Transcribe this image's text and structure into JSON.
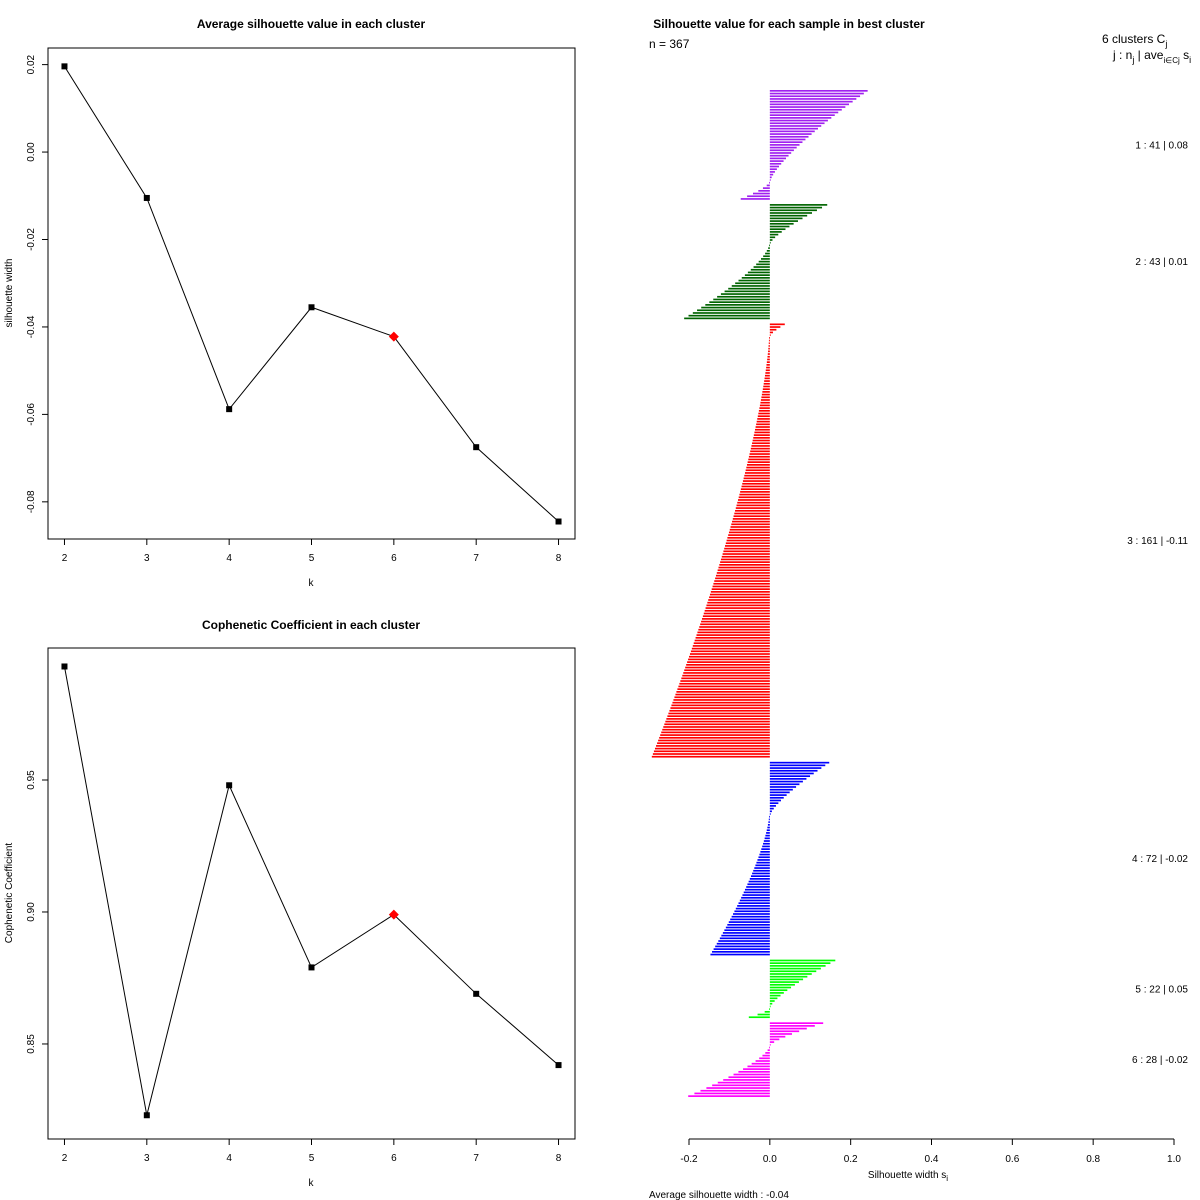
{
  "chart_data": [
    {
      "type": "line",
      "title": "Average silhouette value in each cluster",
      "xlabel": "k",
      "ylabel": "silhouette width",
      "x": [
        2,
        3,
        4,
        5,
        6,
        7,
        8
      ],
      "y": [
        0.0196,
        -0.0105,
        -0.0588,
        -0.0355,
        -0.0422,
        -0.0675,
        -0.0845
      ],
      "highlight_index": 4,
      "highlight_color": "#ff0000",
      "xlim": [
        1.8,
        8.2
      ],
      "ylim": [
        -0.0885,
        0.0238
      ],
      "xticks": [
        "2",
        "3",
        "4",
        "5",
        "6",
        "7",
        "8"
      ],
      "yticks": [
        {
          "v": 0.02,
          "label": "0.02"
        },
        {
          "v": 0.0,
          "label": "0.00"
        },
        {
          "v": -0.02,
          "label": "-0.02"
        },
        {
          "v": -0.04,
          "label": "-0.04"
        },
        {
          "v": -0.06,
          "label": "-0.06"
        },
        {
          "v": -0.08,
          "label": "-0.08"
        }
      ]
    },
    {
      "type": "line",
      "title": "Cophenetic Coefficient in each cluster",
      "xlabel": "k",
      "ylabel": "Cophenetic Coefficient",
      "x": [
        2,
        3,
        4,
        5,
        6,
        7,
        8
      ],
      "y": [
        0.993,
        0.823,
        0.948,
        0.879,
        0.899,
        0.869,
        0.842
      ],
      "highlight_index": 4,
      "highlight_color": "#ff0000",
      "xlim": [
        1.8,
        8.2
      ],
      "ylim": [
        0.814,
        1.0
      ],
      "xticks": [
        "2",
        "3",
        "4",
        "5",
        "6",
        "7",
        "8"
      ],
      "yticks": [
        {
          "v": 0.95,
          "label": "0.95"
        },
        {
          "v": 0.9,
          "label": "0.90"
        },
        {
          "v": 0.85,
          "label": "0.85"
        }
      ]
    },
    {
      "type": "bar",
      "orientation": "horizontal",
      "title": "Silhouette value for each sample in best cluster",
      "n_label": "n = 367",
      "header_line1": "6  clusters  C",
      "header_line1_sub": "j",
      "header_line2": "j :  n",
      "header_line2_sub": "j",
      "header_line2_mid": " | ave",
      "header_line2_sub2": "i∈Cj",
      "header_line2_end": "  s",
      "header_line2_sub3": "i",
      "xlabel": "Silhouette width s",
      "xlabel_sub": "i",
      "avg_text": "Average silhouette width :  -0.04",
      "xlim": [
        -0.2,
        1.0
      ],
      "xticks": [
        "-0.2",
        "0.0",
        "0.2",
        "0.4",
        "0.6",
        "0.8",
        "1.0"
      ],
      "clusters": [
        {
          "id": "1",
          "n": 41,
          "ave": 0.08,
          "label": "1 :  41  |  0.08",
          "color": "#a020f0",
          "max": 0.24,
          "pos_count": 34,
          "min": -0.07
        },
        {
          "id": "2",
          "n": 43,
          "ave": 0.01,
          "label": "2 :  43  |  0.01",
          "color": "#006400",
          "max": 0.14,
          "pos_count": 15,
          "min": -0.21
        },
        {
          "id": "3",
          "n": 161,
          "ave": -0.11,
          "label": "3 :  161  |  -0.11",
          "color": "#ff0000",
          "max": 0.035,
          "pos_count": 5,
          "min": -0.29
        },
        {
          "id": "4",
          "n": 72,
          "ave": -0.02,
          "label": "4 :  72  |  -0.02",
          "color": "#0000ff",
          "max": 0.145,
          "pos_count": 20,
          "min": -0.145
        },
        {
          "id": "5",
          "n": 22,
          "ave": 0.05,
          "label": "5 :  22  |  0.05",
          "color": "#00ff00",
          "max": 0.16,
          "pos_count": 18,
          "min": -0.05
        },
        {
          "id": "6",
          "n": 28,
          "ave": -0.02,
          "label": "6 :  28  |  -0.02",
          "color": "#ff00ff",
          "max": 0.13,
          "pos_count": 9,
          "min": -0.2
        }
      ]
    }
  ]
}
